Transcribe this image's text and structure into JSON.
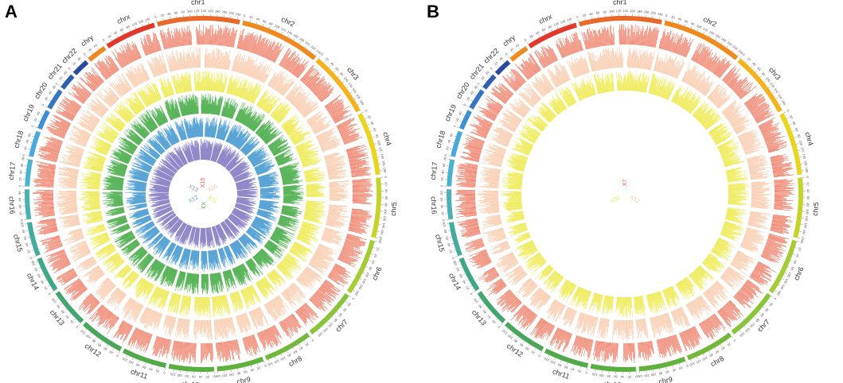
{
  "chart_data": [
    {
      "type": "circos",
      "panel_label": "A",
      "chromosomes": [
        {
          "name": "chr1",
          "length": 249,
          "color": "#e8692a"
        },
        {
          "name": "chr2",
          "length": 243,
          "color": "#f08a1e"
        },
        {
          "name": "chr3",
          "length": 198,
          "color": "#f5b21c"
        },
        {
          "name": "chr4",
          "length": 191,
          "color": "#e9d41e"
        },
        {
          "name": "chr5",
          "length": 181,
          "color": "#c4d42a"
        },
        {
          "name": "chr6",
          "length": 171,
          "color": "#a6cc35"
        },
        {
          "name": "chr7",
          "length": 159,
          "color": "#8ac43a"
        },
        {
          "name": "chr8",
          "length": 146,
          "color": "#72b93a"
        },
        {
          "name": "chr9",
          "length": 141,
          "color": "#61b23c"
        },
        {
          "name": "chr10",
          "length": 136,
          "color": "#58ae3e"
        },
        {
          "name": "chr11",
          "length": 135,
          "color": "#50aa48"
        },
        {
          "name": "chr12",
          "length": 134,
          "color": "#4aa65a"
        },
        {
          "name": "chr13",
          "length": 115,
          "color": "#43a66f"
        },
        {
          "name": "chr14",
          "length": 107,
          "color": "#3ea886"
        },
        {
          "name": "chr15",
          "length": 103,
          "color": "#43ac9f"
        },
        {
          "name": "chr16",
          "length": 90,
          "color": "#4ab1b7"
        },
        {
          "name": "chr17",
          "length": 81,
          "color": "#4cb3cf"
        },
        {
          "name": "chr18",
          "length": 78,
          "color": "#4aa8dc"
        },
        {
          "name": "chr19",
          "length": 59,
          "color": "#3f8fd3"
        },
        {
          "name": "chr20",
          "length": 63,
          "color": "#3575c4"
        },
        {
          "name": "chr21",
          "length": 48,
          "color": "#2f5db0"
        },
        {
          "name": "chr22",
          "length": 51,
          "color": "#2a4a9e"
        },
        {
          "name": "chry",
          "length": 59,
          "color": "#f08a1e"
        },
        {
          "name": "chrx",
          "length": 155,
          "color": "#e0382a"
        }
      ],
      "tracks": [
        {
          "name": "X15",
          "color": "#e9583a"
        },
        {
          "name": "X16",
          "color": "#f7c3a0"
        },
        {
          "name": "X11",
          "color": "#eeea50"
        },
        {
          "name": "X3",
          "color": "#5ab55a"
        },
        {
          "name": "X12",
          "color": "#5aa5d6"
        },
        {
          "name": "X13",
          "color": "#9088c8"
        }
      ]
    },
    {
      "type": "circos",
      "panel_label": "B",
      "chromosomes": [
        {
          "name": "chr1",
          "length": 249,
          "color": "#e8692a"
        },
        {
          "name": "chr2",
          "length": 243,
          "color": "#f08a1e"
        },
        {
          "name": "chr3",
          "length": 198,
          "color": "#f5b21c"
        },
        {
          "name": "chr4",
          "length": 191,
          "color": "#e9d41e"
        },
        {
          "name": "chr5",
          "length": 181,
          "color": "#c4d42a"
        },
        {
          "name": "chr6",
          "length": 171,
          "color": "#a6cc35"
        },
        {
          "name": "chr7",
          "length": 159,
          "color": "#8ac43a"
        },
        {
          "name": "chr8",
          "length": 146,
          "color": "#72b93a"
        },
        {
          "name": "chr9",
          "length": 141,
          "color": "#61b23c"
        },
        {
          "name": "chr10",
          "length": 136,
          "color": "#58ae3e"
        },
        {
          "name": "chr11",
          "length": 135,
          "color": "#50aa48"
        },
        {
          "name": "chr12",
          "length": 134,
          "color": "#4aa65a"
        },
        {
          "name": "chr13",
          "length": 115,
          "color": "#43a66f"
        },
        {
          "name": "chr14",
          "length": 107,
          "color": "#3ea886"
        },
        {
          "name": "chr15",
          "length": 103,
          "color": "#43ac9f"
        },
        {
          "name": "chr16",
          "length": 90,
          "color": "#4ab1b7"
        },
        {
          "name": "chr17",
          "length": 81,
          "color": "#4cb3cf"
        },
        {
          "name": "chr18",
          "length": 78,
          "color": "#4aa8dc"
        },
        {
          "name": "chr19",
          "length": 59,
          "color": "#3f8fd3"
        },
        {
          "name": "chr20",
          "length": 63,
          "color": "#3575c4"
        },
        {
          "name": "chr21",
          "length": 48,
          "color": "#2f5db0"
        },
        {
          "name": "chr22",
          "length": 51,
          "color": "#2a4a9e"
        },
        {
          "name": "chry",
          "length": 59,
          "color": "#f08a1e"
        },
        {
          "name": "chrx",
          "length": 155,
          "color": "#e0382a"
        }
      ],
      "tracks": [
        {
          "name": "X7",
          "color": "#e9583a"
        },
        {
          "name": "X12",
          "color": "#f7c3a0"
        },
        {
          "name": "X31",
          "color": "#eeea50"
        }
      ]
    }
  ]
}
